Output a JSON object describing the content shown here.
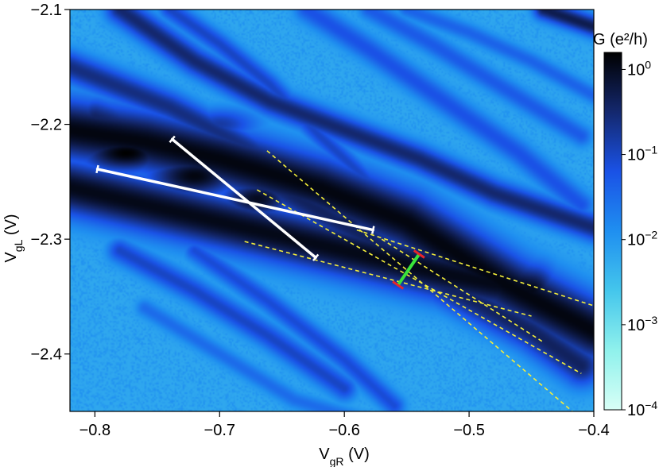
{
  "chart_data": {
    "type": "heatmap",
    "title": "",
    "xlabel": {
      "main": "V",
      "sub": "gR",
      "unit": " (V)"
    },
    "ylabel": {
      "main": "V",
      "sub": "gL",
      "unit": " (V)"
    },
    "xlim": [
      -0.82,
      -0.4
    ],
    "ylim": [
      -2.45,
      -2.1
    ],
    "x_ticks": [
      -0.8,
      -0.7,
      -0.6,
      -0.5,
      -0.4
    ],
    "x_tick_labels": [
      "−0.8",
      "−0.7",
      "−0.6",
      "−0.5",
      "−0.4"
    ],
    "y_ticks": [
      -2.1,
      -2.2,
      -2.3,
      -2.4
    ],
    "y_tick_labels": [
      "−2.1",
      "−2.2",
      "−2.3",
      "−2.4"
    ],
    "colorbar": {
      "title": "G (e²/h)",
      "scale": "log",
      "range": [
        -4,
        0.2
      ],
      "ticks": [
        {
          "exp": 0,
          "base": "10",
          "power": "0"
        },
        {
          "exp": -1,
          "base": "10",
          "power": "−1"
        },
        {
          "exp": -2,
          "base": "10",
          "power": "−2"
        },
        {
          "exp": -3,
          "base": "10",
          "power": "−3"
        },
        {
          "exp": -4,
          "base": "10",
          "power": "−4"
        }
      ],
      "colors": [
        "#d8fff6",
        "#8ff1ec",
        "#44c6ec",
        "#1f8ff0",
        "#1a52e6",
        "#14286e",
        "#000000"
      ]
    },
    "background_level": -2.2,
    "ridges": [
      {
        "x": [
          -0.82,
          -0.76,
          -0.7,
          -0.62,
          -0.55,
          -0.47,
          -0.4
        ],
        "y": [
          -2.205,
          -2.215,
          -2.23,
          -2.255,
          -2.285,
          -2.34,
          -2.38
        ],
        "level": 0.1,
        "width": 0.018
      },
      {
        "x": [
          -0.82,
          -0.76,
          -0.7,
          -0.64,
          -0.58,
          -0.52,
          -0.45
        ],
        "y": [
          -2.255,
          -2.27,
          -2.285,
          -2.3,
          -2.315,
          -2.33,
          -2.345
        ],
        "level": 0.05,
        "width": 0.016
      },
      {
        "x": [
          -0.8,
          -0.74,
          -0.66,
          -0.58,
          -0.52,
          -0.45,
          -0.41
        ],
        "y": [
          -2.195,
          -2.215,
          -2.25,
          -2.3,
          -2.34,
          -2.38,
          -2.41
        ],
        "level": -0.4,
        "width": 0.012
      },
      {
        "x": [
          -0.82,
          -0.74,
          -0.66,
          -0.58,
          -0.5,
          -0.43
        ],
        "y": [
          -2.15,
          -2.185,
          -2.23,
          -2.28,
          -2.33,
          -2.37
        ],
        "level": -0.6,
        "width": 0.009
      },
      {
        "x": [
          -0.78,
          -0.72,
          -0.66,
          -0.6,
          -0.54,
          -0.48,
          -0.4
        ],
        "y": [
          -2.1,
          -2.145,
          -2.18,
          -2.205,
          -2.23,
          -2.26,
          -2.29
        ],
        "level": -0.5,
        "width": 0.008
      },
      {
        "x": [
          -0.74,
          -0.7,
          -0.66,
          -0.62,
          -0.58
        ],
        "y": [
          -2.1,
          -2.13,
          -2.165,
          -2.21,
          -2.25
        ],
        "level": -1.0,
        "width": 0.006
      },
      {
        "x": [
          -0.63,
          -0.58,
          -0.52,
          -0.46,
          -0.41
        ],
        "y": [
          -2.1,
          -2.135,
          -2.18,
          -2.225,
          -2.27
        ],
        "level": -1.2,
        "width": 0.007
      },
      {
        "x": [
          -0.58,
          -0.53,
          -0.47,
          -0.41
        ],
        "y": [
          -2.1,
          -2.13,
          -2.17,
          -2.21
        ],
        "level": -1.3,
        "width": 0.006
      },
      {
        "x": [
          -0.55,
          -0.5,
          -0.45,
          -0.4
        ],
        "y": [
          -2.1,
          -2.12,
          -2.145,
          -2.175
        ],
        "level": -1.4,
        "width": 0.005
      },
      {
        "x": [
          -0.44,
          -0.4
        ],
        "y": [
          -2.1,
          -2.115
        ],
        "level": -0.3,
        "width": 0.006
      },
      {
        "x": [
          -0.78,
          -0.72,
          -0.66,
          -0.6
        ],
        "y": [
          -2.31,
          -2.345,
          -2.385,
          -2.43
        ],
        "level": -1.0,
        "width": 0.007
      },
      {
        "x": [
          -0.72,
          -0.66,
          -0.6,
          -0.56
        ],
        "y": [
          -2.31,
          -2.355,
          -2.405,
          -2.445
        ],
        "level": -1.1,
        "width": 0.006
      },
      {
        "x": [
          -0.76,
          -0.7,
          -0.64,
          -0.58
        ],
        "y": [
          -2.36,
          -2.4,
          -2.44,
          -2.46
        ],
        "level": -1.5,
        "width": 0.005
      }
    ],
    "blobs": [
      {
        "x": -0.775,
        "y": -2.225,
        "rx": 0.05,
        "ry": 0.022,
        "level": 0.2
      },
      {
        "x": -0.72,
        "y": -2.245,
        "rx": 0.05,
        "ry": 0.025,
        "level": 0.1
      },
      {
        "x": -0.67,
        "y": -2.265,
        "rx": 0.04,
        "ry": 0.022,
        "level": 0.0
      },
      {
        "x": -0.6,
        "y": -2.285,
        "rx": 0.04,
        "ry": 0.018,
        "level": -0.3
      },
      {
        "x": -0.53,
        "y": -2.325,
        "rx": 0.05,
        "ry": 0.02,
        "level": -0.55
      },
      {
        "x": -0.46,
        "y": -2.36,
        "rx": 0.04,
        "ry": 0.02,
        "level": -1.0
      },
      {
        "x": -0.7,
        "y": -2.2,
        "rx": 0.04,
        "ry": 0.018,
        "level": -0.8
      },
      {
        "x": -0.72,
        "y": -2.29,
        "rx": 0.04,
        "ry": 0.015,
        "level": -0.7
      }
    ],
    "white_lines": [
      {
        "x": [
          -0.798,
          -0.577
        ],
        "y": [
          -2.239,
          -2.292
        ]
      },
      {
        "x": [
          -0.738,
          -0.623
        ],
        "y": [
          -2.213,
          -2.316
        ]
      }
    ],
    "yellow_dashed_lines": [
      {
        "x": [
          -0.662,
          -0.415
        ],
        "y": [
          -2.223,
          -2.452
        ]
      },
      {
        "x": [
          -0.67,
          -0.41
        ],
        "y": [
          -2.257,
          -2.417
        ]
      },
      {
        "x": [
          -0.59,
          -0.4
        ],
        "y": [
          -2.292,
          -2.358
        ]
      },
      {
        "x": [
          -0.68,
          -0.45
        ],
        "y": [
          -2.302,
          -2.367
        ]
      },
      {
        "x": [
          -0.57,
          -0.44
        ],
        "y": [
          -2.3,
          -2.39
        ]
      }
    ],
    "green_segment": {
      "x": [
        -0.54,
        -0.557
      ],
      "y": [
        -2.313,
        -2.34
      ]
    },
    "red_markers": {
      "x": [
        -0.54,
        -0.557
      ],
      "y": [
        -2.313,
        -2.34
      ]
    },
    "annotation_colors": {
      "white": "#ffffff",
      "yellow": "#f5ef3a",
      "green": "#39e43a",
      "red": "#e8262a"
    }
  }
}
